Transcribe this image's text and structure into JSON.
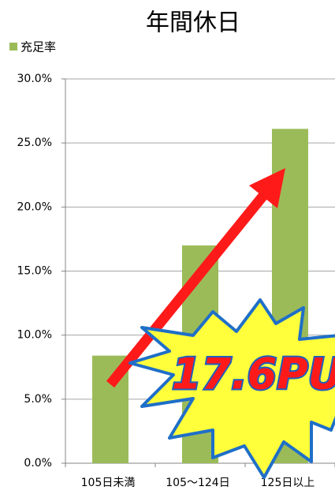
{
  "chart_data": {
    "type": "bar",
    "title": "年間休日",
    "legend": "充足率",
    "categories": [
      "105日未満",
      "105〜124日",
      "125日以上"
    ],
    "values": [
      8.4,
      17.0,
      26.1
    ],
    "color": "#9bbb59",
    "ylim": [
      0,
      30
    ],
    "yticks": [
      {
        "value": 0,
        "label": "0.0%"
      },
      {
        "value": 5,
        "label": "5.0%"
      },
      {
        "value": 10,
        "label": "10.0%"
      },
      {
        "value": 15,
        "label": "15.0%"
      },
      {
        "value": 20,
        "label": "20.0%"
      },
      {
        "value": 25,
        "label": "25.0%"
      },
      {
        "value": 30,
        "label": "30.0%"
      }
    ],
    "grid": true,
    "annotation": "17.6PU"
  }
}
